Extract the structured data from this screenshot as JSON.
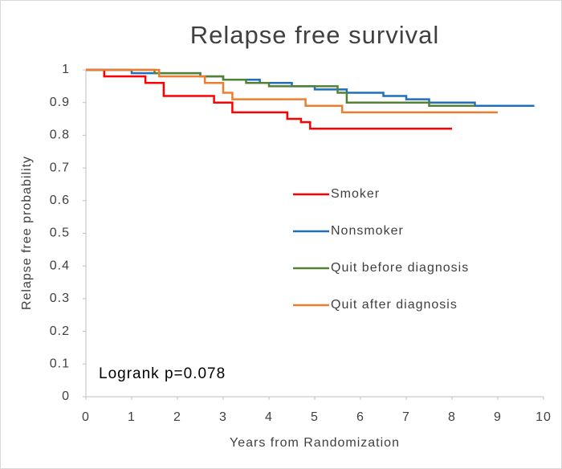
{
  "chart_data": {
    "type": "step",
    "title": "Relapse free survival",
    "x_label": "Years from Randomization",
    "y_label": "Relapse free probability",
    "annotation": "Logrank p=0.078",
    "xlim": [
      0,
      10
    ],
    "xticks": [
      0,
      1,
      2,
      3,
      4,
      5,
      6,
      7,
      8,
      9,
      10
    ],
    "ylim": [
      0,
      1
    ],
    "yticks": [
      0,
      0.1,
      0.2,
      0.3,
      0.4,
      0.5,
      0.6,
      0.7,
      0.8,
      0.9,
      1
    ],
    "grid": false,
    "series": [
      {
        "name": "Smoker",
        "color": "#ff0000",
        "x": [
          0,
          0.4,
          1.3,
          1.7,
          2.8,
          3.2,
          4.4,
          4.7,
          4.9,
          8.0
        ],
        "values": [
          1,
          0.98,
          0.96,
          0.92,
          0.9,
          0.87,
          0.85,
          0.84,
          0.82,
          0.82
        ]
      },
      {
        "name": "Nonsmoker",
        "color": "#1f6fbf",
        "x": [
          0,
          1.0,
          2.5,
          3.0,
          3.8,
          4.5,
          5.0,
          5.7,
          6.5,
          7.0,
          7.5,
          8.5,
          9.8
        ],
        "values": [
          1,
          0.99,
          0.98,
          0.97,
          0.96,
          0.95,
          0.94,
          0.93,
          0.92,
          0.91,
          0.9,
          0.89,
          0.89
        ]
      },
      {
        "name": "Quit before diagnosis",
        "color": "#548235",
        "x": [
          0,
          1.5,
          2.5,
          3.0,
          3.5,
          4.0,
          5.5,
          5.7,
          7.5,
          8.5
        ],
        "values": [
          1,
          0.99,
          0.98,
          0.97,
          0.96,
          0.95,
          0.93,
          0.9,
          0.89,
          0.89
        ]
      },
      {
        "name": "Quit after diagnosis",
        "color": "#ed7d31",
        "x": [
          0,
          1.6,
          2.6,
          3.0,
          3.2,
          4.8,
          5.6,
          9.0
        ],
        "values": [
          1,
          0.98,
          0.96,
          0.93,
          0.91,
          0.89,
          0.87,
          0.87
        ]
      }
    ]
  }
}
